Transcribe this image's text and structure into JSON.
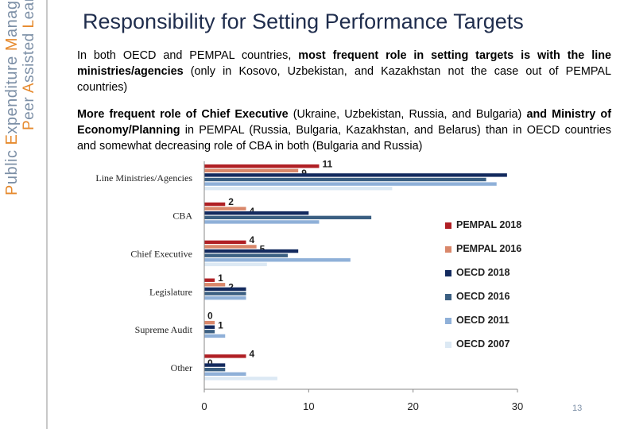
{
  "sidebar": {
    "line1": [
      {
        "t": "P",
        "lead": true
      },
      {
        "t": "ublic ",
        "lead": false
      },
      {
        "t": "E",
        "lead": true
      },
      {
        "t": "xpenditure ",
        "lead": false
      },
      {
        "t": "M",
        "lead": true
      },
      {
        "t": "anagement",
        "lead": false
      }
    ],
    "line2": [
      {
        "t": "P",
        "lead": true
      },
      {
        "t": "eer ",
        "lead": false
      },
      {
        "t": "A",
        "lead": true
      },
      {
        "t": "ssisted ",
        "lead": false
      },
      {
        "t": "L",
        "lead": true
      },
      {
        "t": "earning",
        "lead": false
      }
    ]
  },
  "slide": {
    "title": "Responsibility for Setting Performance Targets",
    "para1": [
      {
        "t": "In both OECD and PEMPAL countries, ",
        "b": false
      },
      {
        "t": "most frequent role in setting targets is with the line ministries/agencies",
        "b": true
      },
      {
        "t": " (only in Kosovo, Uzbekistan, and Kazakhstan not the case out of PEMPAL countries)",
        "b": false
      }
    ],
    "para2": [
      {
        "t": "More frequent role of Chief Executive",
        "b": true
      },
      {
        "t": " (Ukraine, Uzbekistan, Russia, and Bulgaria) ",
        "b": false
      },
      {
        "t": "and Ministry of Economy/Planning",
        "b": true
      },
      {
        "t": " in PEMPAL (Russia, Bulgaria, Kazakhstan, and Belarus) than in OECD countries and somewhat decreasing role of CBA in both (Bulgaria and Russia)",
        "b": false
      }
    ],
    "page_number": "13"
  },
  "chart_data": {
    "type": "bar",
    "orientation": "horizontal",
    "categories": [
      "Line Ministries/Agencies",
      "CBA",
      "Chief Executive",
      "Legislature",
      "Supreme Audit",
      "Other"
    ],
    "series": [
      {
        "name": "PEMPAL 2018",
        "color": "#b01f24",
        "values": [
          11,
          2,
          4,
          1,
          0,
          4
        ],
        "labels": [
          "11",
          "2",
          "4",
          "1",
          "0",
          "4"
        ]
      },
      {
        "name": "PEMPAL 2016",
        "color": "#d9876a",
        "values": [
          9,
          4,
          5,
          2,
          1,
          0
        ],
        "labels": [
          "9",
          "4",
          "5",
          "2",
          "1",
          "0"
        ]
      },
      {
        "name": "OECD 2018",
        "color": "#132a5e",
        "values": [
          29,
          10,
          9,
          4,
          1,
          2
        ]
      },
      {
        "name": "OECD 2016",
        "color": "#3b5f82",
        "values": [
          27,
          16,
          8,
          4,
          1,
          2
        ]
      },
      {
        "name": "OECD 2011",
        "color": "#8fb0d8",
        "values": [
          28,
          11,
          14,
          4,
          2,
          4
        ]
      },
      {
        "name": "OECD 2007",
        "color": "#dce9f4",
        "values": [
          18,
          0,
          6,
          0,
          0,
          7
        ]
      }
    ],
    "xlim": [
      0,
      30
    ],
    "xticks": [
      "0",
      "10",
      "20",
      "30"
    ],
    "legend_position": "right",
    "grid": false
  }
}
